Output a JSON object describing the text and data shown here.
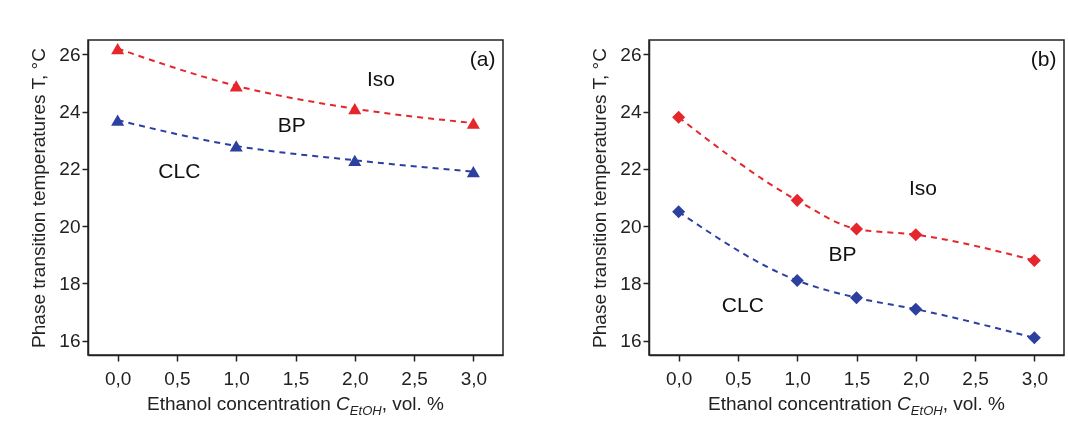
{
  "chart_data": [
    {
      "type": "line",
      "xlabel": "Ethanol concentration C$_{EtOH}$, vol. %",
      "ylabel": "Phase transition temperatures T, °C",
      "marker": "triangle",
      "line_style": "dashed",
      "xlim": [
        -0.25,
        3.25
      ],
      "ylim": [
        15.5,
        26.5
      ],
      "xticks": [
        {
          "value": 0,
          "label": "0,0"
        },
        {
          "value": 0.5,
          "label": "0,5"
        },
        {
          "value": 1,
          "label": "1,0"
        },
        {
          "value": 1.5,
          "label": "1,5"
        },
        {
          "value": 2,
          "label": "2,0"
        },
        {
          "value": 2.5,
          "label": "2,5"
        },
        {
          "value": 3,
          "label": "3,0"
        }
      ],
      "yticks": [
        16,
        18,
        20,
        22,
        24,
        26
      ],
      "x": [
        0,
        1,
        2,
        3
      ],
      "series": [
        {
          "color": "#e5262b",
          "values": [
            26.2,
            24.9,
            24.1,
            23.6
          ]
        },
        {
          "color": "#2c40a0",
          "values": [
            23.7,
            22.8,
            22.3,
            21.9
          ]
        }
      ],
      "annotations": [
        "(a)",
        "Iso",
        "BP",
        "CLC"
      ]
    },
    {
      "type": "line",
      "xlabel": "Ethanol concentration C$_{EtOH}$, vol. %",
      "ylabel": "Phase transition temperatures T, °C",
      "marker": "diamond",
      "line_style": "dashed",
      "xlim": [
        -0.25,
        3.25
      ],
      "ylim": [
        15.5,
        26.5
      ],
      "xticks": [
        {
          "value": 0,
          "label": "0,0"
        },
        {
          "value": 0.5,
          "label": "0,5"
        },
        {
          "value": 1,
          "label": "1,0"
        },
        {
          "value": 1.5,
          "label": "1,5"
        },
        {
          "value": 2,
          "label": "2,0"
        },
        {
          "value": 2.5,
          "label": "2,5"
        },
        {
          "value": 3,
          "label": "3,0"
        }
      ],
      "yticks": [
        16,
        18,
        20,
        22,
        24,
        26
      ],
      "x": [
        0,
        1,
        1.5,
        2,
        3
      ],
      "series": [
        {
          "color": "#e5262b",
          "values": [
            23.8,
            20.9,
            19.9,
            19.7,
            18.8
          ]
        },
        {
          "color": "#2c40a0",
          "values": [
            20.5,
            18.1,
            17.5,
            17.1,
            16.1
          ]
        }
      ],
      "annotations": [
        "(b)",
        "Iso",
        "BP",
        "CLC"
      ]
    }
  ]
}
